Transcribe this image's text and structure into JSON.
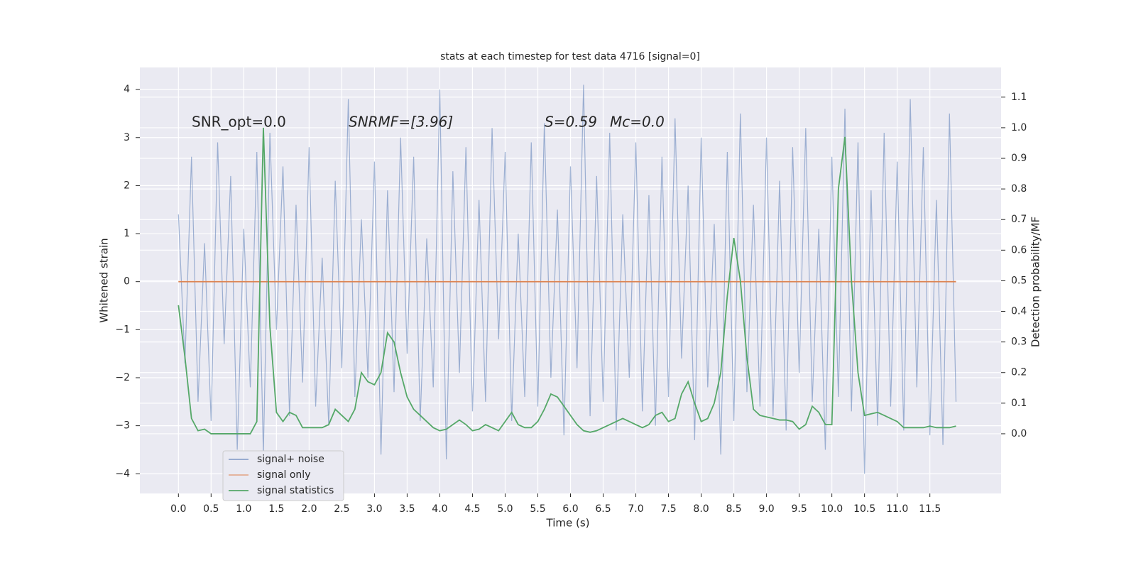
{
  "chart_data": {
    "type": "line",
    "title": "stats at each timestep for test data 4716 [signal=0]",
    "x_label": "Time (s)",
    "y_label": "Whitened strain",
    "y2_label": "Detection probability/MF",
    "annotations": [
      "SNR_opt=0.0",
      "SNRMF=[3.96]",
      "S=0.59",
      "Mc=0.0"
    ],
    "grid": true,
    "legend": "lower left",
    "xlim": [
      -0.59,
      12.59
    ],
    "ylim": [
      -4.41,
      4.46
    ],
    "y2lim": [
      -0.195,
      1.197
    ],
    "xticks": [
      {
        "value": 0,
        "label": "0.0"
      },
      {
        "value": 0.5,
        "label": "0.5"
      },
      {
        "value": 1,
        "label": "1.0"
      },
      {
        "value": 1.5,
        "label": "1.5"
      },
      {
        "value": 2,
        "label": "2.0"
      },
      {
        "value": 2.5,
        "label": "2.5"
      },
      {
        "value": 3,
        "label": "3.0"
      },
      {
        "value": 3.5,
        "label": "3.5"
      },
      {
        "value": 4,
        "label": "4.0"
      },
      {
        "value": 4.5,
        "label": "4.5"
      },
      {
        "value": 5,
        "label": "5.0"
      },
      {
        "value": 5.5,
        "label": "5.5"
      },
      {
        "value": 6,
        "label": "6.0"
      },
      {
        "value": 6.5,
        "label": "6.5"
      },
      {
        "value": 7,
        "label": "7.0"
      },
      {
        "value": 7.5,
        "label": "7.5"
      },
      {
        "value": 8,
        "label": "8.0"
      },
      {
        "value": 8.5,
        "label": "8.5"
      },
      {
        "value": 9,
        "label": "9.0"
      },
      {
        "value": 9.5,
        "label": "9.5"
      },
      {
        "value": 10,
        "label": "10.0"
      },
      {
        "value": 10.5,
        "label": "10.5"
      },
      {
        "value": 11,
        "label": "11.0"
      },
      {
        "value": 11.5,
        "label": "11.5"
      }
    ],
    "yticks": [
      {
        "value": -4,
        "label": "−4"
      },
      {
        "value": -3,
        "label": "−3"
      },
      {
        "value": -2,
        "label": "−2"
      },
      {
        "value": -1,
        "label": "−1"
      },
      0,
      1,
      2,
      3,
      4
    ],
    "y2ticks": [
      {
        "value": 0,
        "label": "0.0"
      },
      {
        "value": 0.1,
        "label": "0.1"
      },
      {
        "value": 0.2,
        "label": "0.2"
      },
      {
        "value": 0.3,
        "label": "0.3"
      },
      {
        "value": 0.4,
        "label": "0.4"
      },
      {
        "value": 0.5,
        "label": "0.5"
      },
      {
        "value": 0.6,
        "label": "0.6"
      },
      {
        "value": 0.7,
        "label": "0.7"
      },
      {
        "value": 0.8,
        "label": "0.8"
      },
      {
        "value": 0.9,
        "label": "0.9"
      },
      {
        "value": 1,
        "label": "1.0"
      },
      {
        "value": 1.1,
        "label": "1.1"
      }
    ],
    "x": [
      0,
      0.1,
      0.2,
      0.3,
      0.4,
      0.5,
      0.6,
      0.7,
      0.8,
      0.9,
      1,
      1.1,
      1.2,
      1.3,
      1.4,
      1.5,
      1.6,
      1.7,
      1.8,
      1.9,
      2,
      2.1,
      2.2,
      2.3,
      2.4,
      2.5,
      2.6,
      2.7,
      2.8,
      2.9,
      3,
      3.1,
      3.2,
      3.3,
      3.4,
      3.5,
      3.6,
      3.7,
      3.8,
      3.9,
      4,
      4.1,
      4.2,
      4.3,
      4.4,
      4.5,
      4.6,
      4.7,
      4.8,
      4.9,
      5,
      5.1,
      5.2,
      5.3,
      5.4,
      5.5,
      5.6,
      5.7,
      5.8,
      5.9,
      6,
      6.1,
      6.2,
      6.3,
      6.4,
      6.5,
      6.6,
      6.7,
      6.8,
      6.9,
      7,
      7.1,
      7.2,
      7.3,
      7.4,
      7.5,
      7.6,
      7.7,
      7.8,
      7.9,
      8,
      8.1,
      8.2,
      8.3,
      8.4,
      8.5,
      8.6,
      8.7,
      8.8,
      8.9,
      9,
      9.1,
      9.2,
      9.3,
      9.4,
      9.5,
      9.6,
      9.7,
      9.8,
      9.9,
      10,
      10.1,
      10.2,
      10.3,
      10.4,
      10.5,
      10.6,
      10.7,
      10.8,
      10.9,
      11,
      11.1,
      11.2,
      11.3,
      11.4,
      11.5,
      11.6,
      11.7,
      11.8,
      11.9
    ],
    "series": [
      {
        "name": "signal+ noise",
        "color": "#4c72b0",
        "values": [
          1.4,
          -1.7,
          2.6,
          -2.5,
          0.8,
          -2.9,
          2.9,
          -1.3,
          2.2,
          -3.5,
          1.1,
          -2.2,
          2.7,
          -3.6,
          3.1,
          -1.0,
          2.4,
          -2.8,
          1.6,
          -2.1,
          2.8,
          -2.6,
          0.5,
          -3.0,
          2.1,
          -1.8,
          3.8,
          -2.4,
          1.3,
          -2.0,
          2.5,
          -3.6,
          1.9,
          -2.3,
          3.0,
          -1.5,
          2.6,
          -2.9,
          0.9,
          -2.2,
          4.0,
          -3.7,
          2.3,
          -1.9,
          2.8,
          -2.7,
          1.7,
          -2.5,
          3.2,
          -1.2,
          2.7,
          -2.9,
          1.0,
          -2.4,
          2.9,
          -2.6,
          3.3,
          -2.0,
          1.5,
          -3.2,
          2.4,
          -1.8,
          4.1,
          -2.8,
          2.2,
          -2.5,
          3.1,
          -3.1,
          1.4,
          -2.0,
          2.9,
          -2.7,
          1.8,
          -3.0,
          2.6,
          -2.4,
          3.4,
          -1.6,
          2.0,
          -3.3,
          3.0,
          -2.2,
          1.2,
          -3.6,
          2.7,
          -2.9,
          3.5,
          -2.3,
          1.6,
          -2.6,
          3.0,
          -2.8,
          2.1,
          -3.1,
          2.8,
          -1.9,
          3.2,
          -2.5,
          1.1,
          -3.5,
          2.6,
          -2.4,
          3.6,
          -2.7,
          2.9,
          -4.0,
          1.9,
          -3.0,
          3.1,
          -2.6,
          2.5,
          -3.1,
          3.8,
          -2.2,
          2.8,
          -3.2,
          1.7,
          -3.4,
          3.5,
          -2.5
        ]
      },
      {
        "name": "signal only",
        "color": "#dd8452",
        "values": [
          0,
          0,
          0,
          0,
          0,
          0,
          0,
          0,
          0,
          0,
          0,
          0,
          0,
          0,
          0,
          0,
          0,
          0,
          0,
          0,
          0,
          0,
          0,
          0,
          0,
          0,
          0,
          0,
          0,
          0,
          0,
          0,
          0,
          0,
          0,
          0,
          0,
          0,
          0,
          0,
          0,
          0,
          0,
          0,
          0,
          0,
          0,
          0,
          0,
          0,
          0,
          0,
          0,
          0,
          0,
          0,
          0,
          0,
          0,
          0,
          0,
          0,
          0,
          0,
          0,
          0,
          0,
          0,
          0,
          0,
          0,
          0,
          0,
          0,
          0,
          0,
          0,
          0,
          0,
          0,
          0,
          0,
          0,
          0,
          0,
          0,
          0,
          0,
          0,
          0,
          0,
          0,
          0,
          0,
          0,
          0,
          0,
          0,
          0,
          0,
          0,
          0,
          0,
          0,
          0,
          0,
          0,
          0,
          0,
          0,
          0,
          0,
          0,
          0,
          0,
          0,
          0,
          0,
          0,
          0
        ]
      },
      {
        "name": "signal statistics",
        "color": "#55a868",
        "axis": "y2",
        "values": [
          0.42,
          0.25,
          0.05,
          0.01,
          0.015,
          0.0,
          0.0,
          0.0,
          0.0,
          0.0,
          0.0,
          0.0,
          0.04,
          1.0,
          0.35,
          0.07,
          0.04,
          0.07,
          0.06,
          0.02,
          0.02,
          0.02,
          0.02,
          0.03,
          0.08,
          0.06,
          0.04,
          0.08,
          0.2,
          0.17,
          0.16,
          0.2,
          0.33,
          0.3,
          0.2,
          0.12,
          0.08,
          0.06,
          0.04,
          0.02,
          0.01,
          0.015,
          0.03,
          0.045,
          0.03,
          0.01,
          0.015,
          0.03,
          0.02,
          0.01,
          0.04,
          0.07,
          0.03,
          0.02,
          0.02,
          0.04,
          0.08,
          0.13,
          0.12,
          0.09,
          0.06,
          0.03,
          0.01,
          0.005,
          0.01,
          0.02,
          0.03,
          0.04,
          0.05,
          0.04,
          0.03,
          0.02,
          0.03,
          0.06,
          0.07,
          0.04,
          0.05,
          0.13,
          0.17,
          0.1,
          0.04,
          0.05,
          0.1,
          0.2,
          0.45,
          0.64,
          0.5,
          0.25,
          0.08,
          0.06,
          0.055,
          0.05,
          0.045,
          0.045,
          0.04,
          0.015,
          0.03,
          0.09,
          0.07,
          0.03,
          0.03,
          0.8,
          0.97,
          0.5,
          0.2,
          0.06,
          0.065,
          0.07,
          0.06,
          0.05,
          0.04,
          0.02,
          0.02,
          0.02,
          0.02,
          0.025,
          0.02,
          0.02,
          0.02,
          0.025
        ]
      }
    ]
  }
}
